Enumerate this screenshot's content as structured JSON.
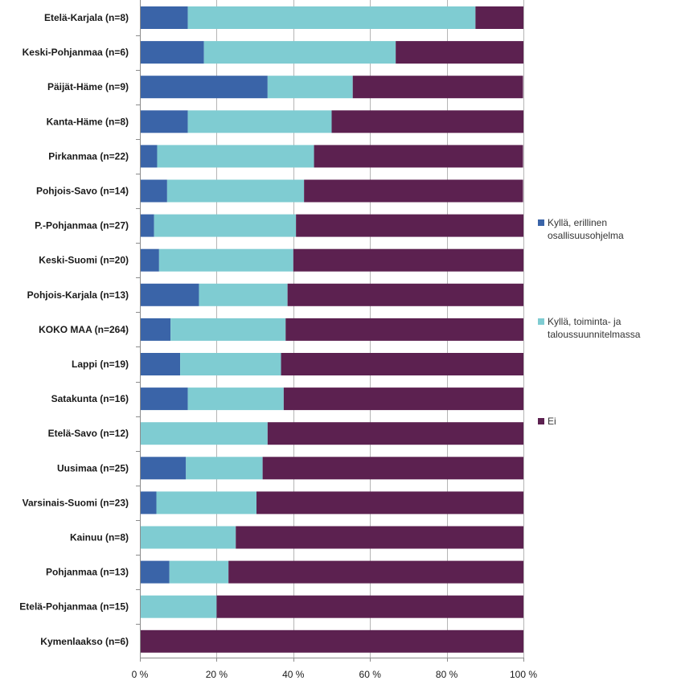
{
  "chart_data": {
    "type": "bar",
    "orientation": "horizontal",
    "stacked": true,
    "percent_stacked": true,
    "title": "",
    "xlabel": "",
    "ylabel": "",
    "xlim": [
      0,
      100
    ],
    "grid": true,
    "legend_position": "right",
    "x_ticks": [
      "0 %",
      "20 %",
      "40 %",
      "60 %",
      "80 %",
      "100 %"
    ],
    "categories": [
      "Etelä-Karjala (n=8)",
      "Keski-Pohjanmaa (n=6)",
      "Päijät-Häme (n=9)",
      "Kanta-Häme (n=8)",
      "Pirkanmaa (n=22)",
      "Pohjois-Savo (n=14)",
      "P.-Pohjanmaa (n=27)",
      "Keski-Suomi (n=20)",
      "Pohjois-Karjala (n=13)",
      "KOKO MAA (n=264)",
      "Lappi (n=19)",
      "Satakunta (n=16)",
      "Etelä-Savo (n=12)",
      "Uusimaa (n=25)",
      "Varsinais-Suomi (n=23)",
      "Kainuu (n=8)",
      "Pohjanmaa (n=13)",
      "Etelä-Pohjanmaa (n=15)",
      "Kymenlaakso (n=6)"
    ],
    "series": [
      {
        "name": "Kyllä, erillinen osallisuusohjelma",
        "legend_lines": [
          "Kyllä, erillinen",
          "osallisuusohjelma"
        ],
        "color": "#3a64a8",
        "values": [
          12.5,
          16.7,
          33.3,
          12.5,
          4.5,
          7.1,
          3.7,
          5.0,
          15.4,
          8.0,
          10.5,
          12.5,
          0,
          12.0,
          4.3,
          0,
          7.7,
          0,
          0
        ]
      },
      {
        "name": "Kyllä, toiminta- ja taloussuunnitelmassa",
        "legend_lines": [
          "Kyllä, toiminta- ja",
          "taloussuunnitelmassa"
        ],
        "color": "#7fccd2",
        "values": [
          75.0,
          50.0,
          22.2,
          37.5,
          40.9,
          35.7,
          37.0,
          35.0,
          23.1,
          30.0,
          26.3,
          25.0,
          33.3,
          20.0,
          26.1,
          25.0,
          15.4,
          20.0,
          0
        ]
      },
      {
        "name": "Ei",
        "legend_lines": [
          "Ei"
        ],
        "color": "#5c2150",
        "values": [
          12.5,
          33.3,
          44.4,
          50.0,
          54.5,
          57.1,
          59.3,
          60.0,
          61.5,
          62.0,
          63.2,
          62.5,
          66.7,
          68.0,
          69.6,
          75.0,
          76.9,
          80.0,
          100.0
        ]
      }
    ]
  }
}
